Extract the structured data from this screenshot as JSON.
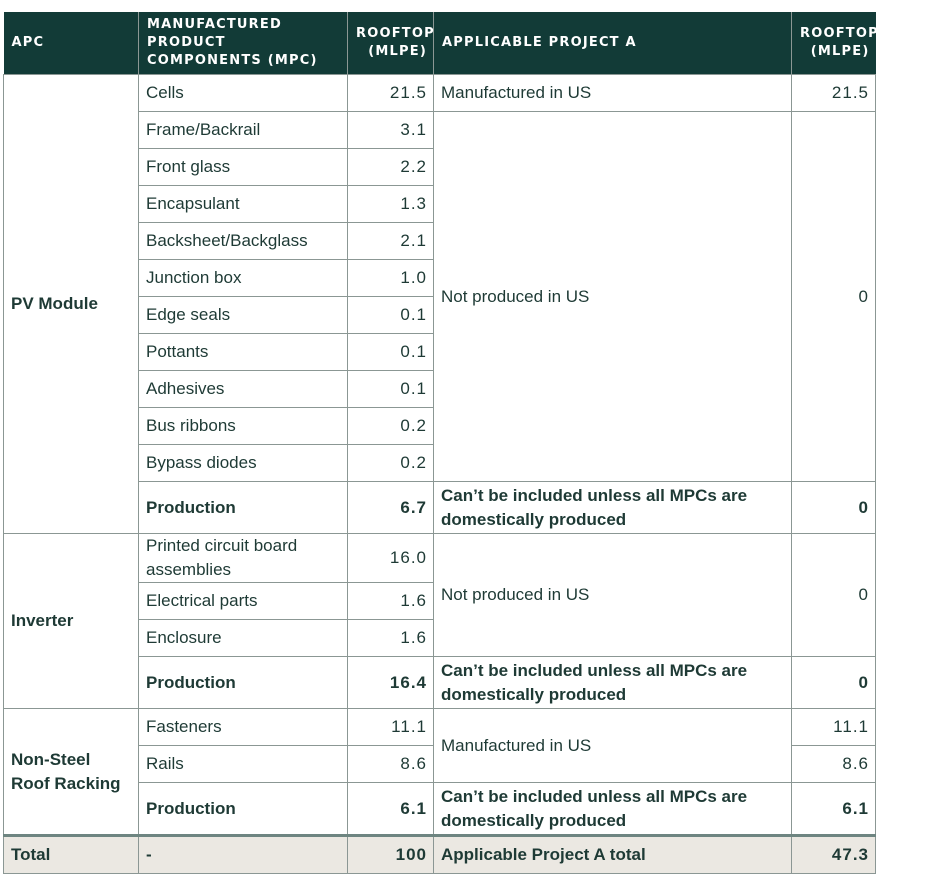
{
  "header": {
    "apc": "APC",
    "mpc": "MANUFACTURED PRODUCT COMPONENTS (MPC)",
    "rooftop": "ROOFTOP (MLPE)",
    "project": "APPLICABLE PROJECT A",
    "rooftop2": "ROOFTOP (MLPE)"
  },
  "pv": {
    "apc": "PV Module",
    "rows": [
      {
        "mpc": "Cells",
        "value": "21.5"
      },
      {
        "mpc": "Frame/Backrail",
        "value": "3.1"
      },
      {
        "mpc": "Front glass",
        "value": "2.2"
      },
      {
        "mpc": "Encapsulant",
        "value": "1.3"
      },
      {
        "mpc": "Backsheet/Backglass",
        "value": "2.1"
      },
      {
        "mpc": "Junction box",
        "value": "1.0"
      },
      {
        "mpc": "Edge seals",
        "value": "0.1"
      },
      {
        "mpc": "Pottants",
        "value": "0.1"
      },
      {
        "mpc": "Adhesives",
        "value": "0.1"
      },
      {
        "mpc": "Bus ribbons",
        "value": "0.2"
      },
      {
        "mpc": "Bypass diodes",
        "value": "0.2"
      }
    ],
    "cells_status": "Manufactured in US",
    "cells_project_value": "21.5",
    "others_status": "Not produced in US",
    "others_project_value": "0",
    "production": {
      "label": "Production",
      "value": "6.7",
      "status": "Can’t be included unless all MPCs are domestically produced",
      "project_value": "0"
    }
  },
  "inverter": {
    "apc": "Inverter",
    "rows": [
      {
        "mpc": "Printed circuit board assemblies",
        "value": "16.0"
      },
      {
        "mpc": "Electrical parts",
        "value": "1.6"
      },
      {
        "mpc": "Enclosure",
        "value": "1.6"
      }
    ],
    "status": "Not produced in US",
    "project_value": "0",
    "production": {
      "label": "Production",
      "value": "16.4",
      "status": "Can’t be included unless all MPCs are domestically produced",
      "project_value": "0"
    }
  },
  "racking": {
    "apc": "Non-Steel Roof Racking",
    "rows": [
      {
        "mpc": "Fasteners",
        "value": "11.1",
        "project_value": "11.1"
      },
      {
        "mpc": "Rails",
        "value": "8.6",
        "project_value": "8.6"
      }
    ],
    "status": "Manufactured in US",
    "production": {
      "label": "Production",
      "value": "6.1",
      "status": "Can’t be included unless all MPCs are domestically produced",
      "project_value": "6.1"
    }
  },
  "total": {
    "label": "Total",
    "mpc": "-",
    "value": "100",
    "project_label": "Applicable Project A total",
    "project_value": "47.3"
  },
  "colors": {
    "header_bg": "#123b37",
    "header_text": "#ffffff",
    "text": "#1e3a35",
    "border": "#8b9794",
    "total_bg": "#ebe8e2"
  }
}
